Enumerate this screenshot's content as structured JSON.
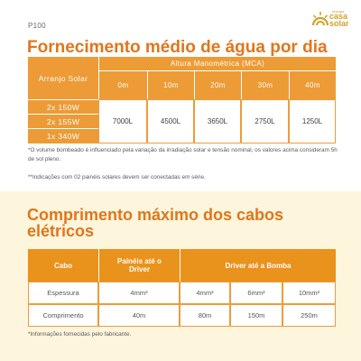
{
  "doc": {
    "code": "P100",
    "brand_small": "energia",
    "brand_line1": "casa",
    "brand_line2": "solar",
    "title1": "Fornecimento médio de água por dia",
    "title2": "Comprimento máximo dos cabos elétricos"
  },
  "table1": {
    "row_header": "Arranjo Solar",
    "group_header": "Altura Manométrica (MCA)",
    "heights": [
      "0m",
      "10m",
      "20m",
      "30m",
      "40m"
    ],
    "arrays": [
      "2x 150W",
      "2x 155W",
      "1x 340W"
    ],
    "values": [
      "7000L",
      "4500L",
      "3650L",
      "2750L",
      "1250L"
    ]
  },
  "notes1": {
    "n1": "*O volume bombeado é influenciado pela variação da irradiação solar e tensão nominal, os valores acima consideram 5h de sol pleno.",
    "n2": "**Indicações com 02 painéis solares devem ser conectadas em série."
  },
  "table2": {
    "h_cabo": "Cabo",
    "h_paineis": "Painéis até o Driver",
    "h_driver": "Driver até a Bomba",
    "rows": [
      {
        "label": "Espessura",
        "c1": "4mm²",
        "c2": "4mm²",
        "c3": "6mm²",
        "c4": "10mm²"
      },
      {
        "label": "Comprimento",
        "c1": "40m",
        "c2": "80m",
        "c3": "150m",
        "c4": "250m"
      }
    ]
  },
  "notes2": {
    "n1": "*Informações fornecidas pelo fabricante."
  },
  "colors": {
    "accent": "#e0761c",
    "table_header": "#ec9b36",
    "panel_bg": "#fdf5dc"
  }
}
